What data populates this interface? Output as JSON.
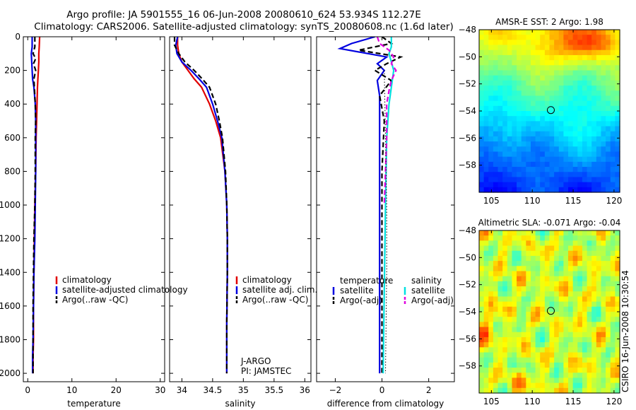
{
  "title_line1": "Argo profile: JA 5901555_16 06-Jun-2008 20080610_624 53.934S 112.27E",
  "title_line2": "Climatology: CARS2006. Satellite-adjusted climatology: synTS_20080608.nc (1.6d later)",
  "side_note": "CSIRO 16-Jun-2008 10:30:54",
  "colors": {
    "climatology": "#e00000",
    "satellite": "#0000e0",
    "argo": "#000000",
    "sal_satellite": "#00e0e0",
    "sal_argo": "#e000e0"
  },
  "chart_data": [
    {
      "type": "line",
      "id": "temperature",
      "xlabel": "temperature",
      "xlim": [
        -1,
        31
      ],
      "ylim": [
        2050,
        0
      ],
      "xticks": [
        0,
        10,
        20,
        30
      ],
      "yticks": [
        0,
        200,
        400,
        600,
        800,
        1000,
        1200,
        1400,
        1600,
        1800,
        2000
      ],
      "legend": [
        "climatology",
        "satellite-adjusted climatology",
        "Argo(..raw -QC)"
      ],
      "series": [
        {
          "name": "climatology",
          "style": "solid",
          "color": "#e00000",
          "x": [
            2.7,
            2.6,
            2.5,
            2.5,
            2.4,
            2.3,
            2.2,
            2.1,
            2.0,
            1.9,
            1.8,
            1.6,
            1.5,
            1.4,
            1.3,
            1.3,
            1.2,
            1.2
          ],
          "y": [
            0,
            60,
            100,
            150,
            200,
            250,
            300,
            400,
            500,
            600,
            800,
            1000,
            1200,
            1400,
            1600,
            1800,
            1900,
            2000
          ]
        },
        {
          "name": "satellite",
          "style": "solid",
          "color": "#0000e0",
          "x": [
            1.0,
            1.0,
            0.8,
            0.9,
            1.0,
            1.1,
            1.4,
            1.7,
            1.8,
            1.8,
            1.8,
            1.7,
            1.6,
            1.4,
            1.3,
            1.2,
            1.1,
            1.1
          ],
          "y": [
            0,
            60,
            100,
            150,
            200,
            250,
            300,
            400,
            500,
            600,
            800,
            1000,
            1200,
            1400,
            1600,
            1800,
            1900,
            2000
          ]
        },
        {
          "name": "argo",
          "style": "dashed",
          "color": "#000000",
          "x": [
            1.6,
            1.6,
            1.2,
            1.8,
            1.3,
            1.8,
            1.4,
            1.5,
            1.7,
            1.8,
            1.7,
            1.7,
            1.6,
            1.4,
            1.3,
            1.2,
            1.2
          ],
          "y": [
            0,
            60,
            100,
            130,
            160,
            200,
            250,
            300,
            400,
            500,
            600,
            800,
            1000,
            1200,
            1400,
            1600,
            2000
          ]
        }
      ]
    },
    {
      "type": "line",
      "id": "salinity",
      "xlabel": "salinity",
      "xlim": [
        33.8,
        36.1
      ],
      "ylim": [
        2050,
        0
      ],
      "xticks": [
        34,
        34.5,
        35,
        35.5,
        36
      ],
      "legend": [
        "climatology",
        "satellite adj. clim.",
        "Argo(..raw -QC)"
      ],
      "annotations": [
        "J-ARGO",
        "PI: JAMSTEC"
      ],
      "series": [
        {
          "name": "climatology",
          "style": "solid",
          "color": "#e00000",
          "x": [
            33.93,
            33.93,
            33.95,
            34.0,
            34.1,
            34.2,
            34.32,
            34.45,
            34.55,
            34.63,
            34.7,
            34.73,
            34.74,
            34.74,
            34.73,
            34.73
          ],
          "y": [
            0,
            50,
            100,
            150,
            200,
            250,
            300,
            400,
            500,
            600,
            800,
            1000,
            1200,
            1400,
            1700,
            2000
          ]
        },
        {
          "name": "satellite",
          "style": "solid",
          "color": "#0000e0",
          "x": [
            33.93,
            33.9,
            33.92,
            34.0,
            34.15,
            34.28,
            34.4,
            34.5,
            34.58,
            34.65,
            34.7,
            34.73,
            34.74,
            34.74,
            34.73,
            34.73
          ],
          "y": [
            0,
            50,
            100,
            150,
            200,
            250,
            300,
            400,
            500,
            600,
            800,
            1000,
            1200,
            1400,
            1700,
            2000
          ]
        },
        {
          "name": "argo",
          "style": "dashed",
          "color": "#000000",
          "x": [
            33.88,
            33.88,
            33.95,
            34.05,
            34.2,
            34.33,
            34.45,
            34.55,
            34.61,
            34.66,
            34.71,
            34.73,
            34.74,
            34.74,
            34.73,
            34.73
          ],
          "y": [
            0,
            50,
            100,
            150,
            200,
            250,
            300,
            400,
            500,
            600,
            800,
            1000,
            1200,
            1400,
            1700,
            2000
          ]
        }
      ]
    },
    {
      "type": "line",
      "id": "difference",
      "xlabel": "difference from climatology",
      "xlim": [
        -2.8,
        3.1
      ],
      "ylim": [
        2050,
        0
      ],
      "xticks": [
        -2,
        0,
        2
      ],
      "legend_groups": [
        "temperature",
        "salinity"
      ],
      "legend": [
        "satellite",
        "Argo(-adj)",
        "satellite",
        "Argo(-adj)"
      ],
      "series": [
        {
          "name": "temperature satellite",
          "style": "solid",
          "color": "#0000e0",
          "x": [
            -0.3,
            -1.3,
            -1.8,
            -0.6,
            0.2,
            -0.2,
            0.1,
            -0.2,
            -0.1,
            -0.1,
            -0.1,
            -0.1,
            -0.1,
            -0.1
          ],
          "y": [
            0,
            40,
            70,
            100,
            120,
            160,
            200,
            260,
            350,
            500,
            800,
            1200,
            1600,
            2000
          ]
        },
        {
          "name": "temperature argo",
          "style": "dashed",
          "color": "#000000",
          "x": [
            0.0,
            0.4,
            -1.0,
            0.8,
            0.2,
            -0.3,
            0.4,
            -0.1,
            0.1,
            0.0,
            0.0,
            0.0,
            0.0
          ],
          "y": [
            0,
            40,
            80,
            120,
            160,
            200,
            260,
            350,
            500,
            800,
            1200,
            1600,
            2000
          ]
        },
        {
          "name": "salinity satellite",
          "style": "solid",
          "color": "#00e0e0",
          "x": [
            0.4,
            0.4,
            0.3,
            0.4,
            0.5,
            0.4,
            0.3,
            0.2,
            0.15,
            0.1,
            0.05
          ],
          "y": [
            0,
            60,
            100,
            150,
            200,
            300,
            400,
            600,
            1000,
            1500,
            2000
          ]
        },
        {
          "name": "salinity argo",
          "style": "dashed",
          "color": "#e000e0",
          "x": [
            -0.2,
            -0.1,
            0.3,
            0.5,
            0.4,
            0.6,
            0.4,
            0.3,
            0.2,
            0.2,
            0.15,
            0.1
          ],
          "y": [
            0,
            40,
            80,
            120,
            160,
            200,
            260,
            320,
            400,
            600,
            800,
            1000
          ]
        },
        {
          "name": "reference",
          "style": "dotted",
          "color": "#000000",
          "x": [
            0.1,
            0.15,
            0.2,
            0.2,
            0.15
          ],
          "y": [
            200,
            600,
            1000,
            1400,
            2000
          ]
        }
      ]
    },
    {
      "type": "heatmap",
      "id": "sst_map",
      "title": "AMSR-E SST: 2 Argo: 1.98",
      "xlim": [
        103.5,
        120.7
      ],
      "ylim": [
        -60,
        -48
      ],
      "xticks": [
        105,
        110,
        115,
        120
      ],
      "yticks": [
        -48,
        -50,
        -52,
        -54,
        -56,
        -58
      ],
      "marker": {
        "lon": 112.27,
        "lat": -53.934
      },
      "colormap": "jet",
      "clim": [
        0,
        12
      ]
    },
    {
      "type": "heatmap",
      "id": "sla_map",
      "title": "Altimetric SLA: -0.071 Argo: -0.04",
      "xlim": [
        103.5,
        120.7
      ],
      "ylim": [
        -60,
        -48
      ],
      "xticks": [
        105,
        110,
        115,
        120
      ],
      "yticks": [
        -48,
        -50,
        -52,
        -54,
        -56,
        -58
      ],
      "marker": {
        "lon": 112.27,
        "lat": -53.934
      },
      "colormap": "jet",
      "clim": [
        -0.5,
        0.5
      ]
    }
  ]
}
